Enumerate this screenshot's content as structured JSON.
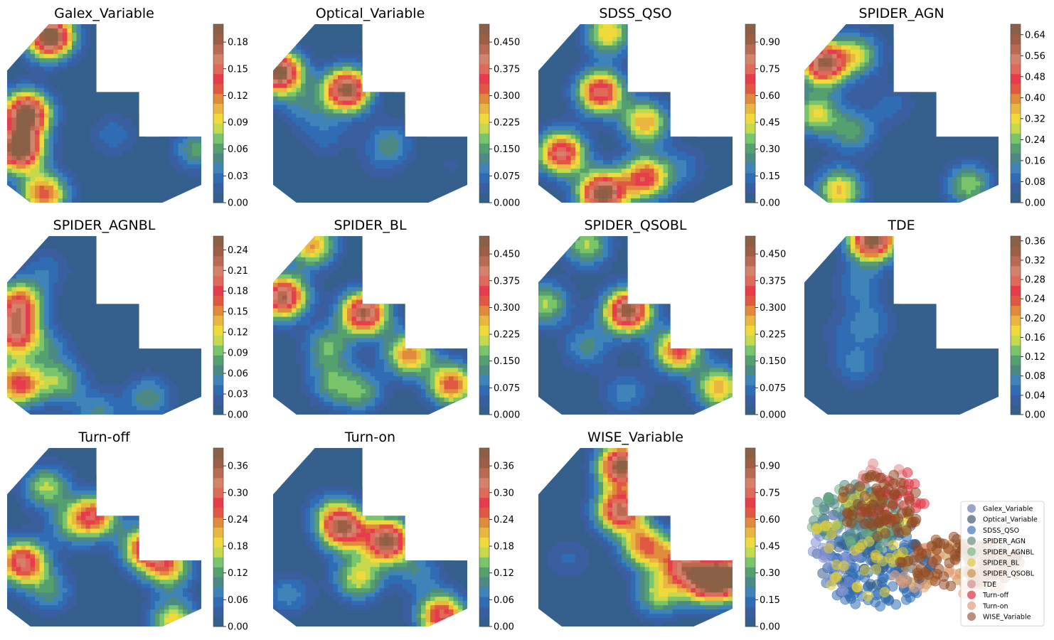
{
  "palette": [
    "#355f8d",
    "#3a5fa0",
    "#2f6cb3",
    "#3f84b8",
    "#4c8a83",
    "#55a06f",
    "#7ac56b",
    "#c6d84c",
    "#f0d93b",
    "#e9b640",
    "#e08a3c",
    "#e05842",
    "#e63c4b",
    "#e06a5a",
    "#d4826b",
    "#b86b52",
    "#9c5e45",
    "#8a6046"
  ],
  "chart_data": [
    {
      "type": "heatmap",
      "style": "filled-contour",
      "title": "Galex_Variable",
      "colorbar": {
        "ticks": [
          "0.00",
          "0.03",
          "0.06",
          "0.09",
          "0.12",
          "0.15",
          "0.18"
        ],
        "range": [
          0,
          0.2
        ]
      },
      "peaks": [
        {
          "at": [
            0.22,
            0.07
          ],
          "value": 0.21
        },
        {
          "at": [
            0.1,
            0.5
          ],
          "value": 0.2
        },
        {
          "at": [
            0.06,
            0.7
          ],
          "value": 0.21
        },
        {
          "at": [
            0.19,
            0.95
          ],
          "value": 0.13
        },
        {
          "at": [
            0.98,
            0.7
          ],
          "value": 0.06
        },
        {
          "at": [
            0.55,
            0.62
          ],
          "value": 0.03
        }
      ]
    },
    {
      "type": "heatmap",
      "style": "filled-contour",
      "title": "Optical_Variable",
      "colorbar": {
        "ticks": [
          "0.000",
          "0.075",
          "0.150",
          "0.225",
          "0.300",
          "0.375",
          "0.450"
        ],
        "range": [
          0,
          0.5
        ]
      },
      "peaks": [
        {
          "at": [
            0.03,
            0.27
          ],
          "value": 0.5
        },
        {
          "at": [
            0.38,
            0.37
          ],
          "value": 0.48
        },
        {
          "at": [
            0.16,
            0.46
          ],
          "value": 0.09
        },
        {
          "at": [
            0.6,
            0.67
          ],
          "value": 0.12
        },
        {
          "at": [
            0.27,
            0.62
          ],
          "value": 0.07
        },
        {
          "at": [
            0.54,
            0.79
          ],
          "value": 0.03
        },
        {
          "at": [
            0.92,
            0.79
          ],
          "value": 0.03
        }
      ]
    },
    {
      "type": "heatmap",
      "style": "filled-contour",
      "title": "SDSS_QSO",
      "colorbar": {
        "ticks": [
          "0.00",
          "0.15",
          "0.30",
          "0.45",
          "0.60",
          "0.75",
          "0.90"
        ],
        "range": [
          0,
          1.0
        ]
      },
      "peaks": [
        {
          "at": [
            0.32,
            0.38
          ],
          "value": 0.78
        },
        {
          "at": [
            0.12,
            0.72
          ],
          "value": 0.8
        },
        {
          "at": [
            0.33,
            0.95
          ],
          "value": 1.0
        },
        {
          "at": [
            0.55,
            0.55
          ],
          "value": 0.55
        },
        {
          "at": [
            0.55,
            0.86
          ],
          "value": 0.7
        },
        {
          "at": [
            0.36,
            0.05
          ],
          "value": 0.5
        },
        {
          "at": [
            0.75,
            0.8
          ],
          "value": 0.15
        }
      ]
    },
    {
      "type": "heatmap",
      "style": "filled-contour",
      "title": "SPIDER_AGN",
      "colorbar": {
        "ticks": [
          "0.00",
          "0.08",
          "0.16",
          "0.24",
          "0.32",
          "0.40",
          "0.48",
          "0.56",
          "0.64"
        ],
        "range": [
          0,
          0.68
        ]
      },
      "peaks": [
        {
          "at": [
            0.1,
            0.22
          ],
          "value": 0.62
        },
        {
          "at": [
            0.06,
            0.5
          ],
          "value": 0.3
        },
        {
          "at": [
            0.18,
            0.93
          ],
          "value": 0.35
        },
        {
          "at": [
            0.28,
            0.17
          ],
          "value": 0.25
        },
        {
          "at": [
            0.25,
            0.6
          ],
          "value": 0.2
        },
        {
          "at": [
            0.45,
            0.45
          ],
          "value": 0.09
        },
        {
          "at": [
            0.85,
            0.9
          ],
          "value": 0.26
        }
      ]
    },
    {
      "type": "heatmap",
      "style": "filled-contour",
      "title": "SPIDER_AGNBL",
      "colorbar": {
        "ticks": [
          "0.00",
          "0.03",
          "0.06",
          "0.09",
          "0.12",
          "0.15",
          "0.18",
          "0.21",
          "0.24"
        ],
        "range": [
          0,
          0.26
        ]
      },
      "peaks": [
        {
          "at": [
            0.06,
            0.38
          ],
          "value": 0.18
        },
        {
          "at": [
            0.04,
            0.55
          ],
          "value": 0.19
        },
        {
          "at": [
            0.06,
            0.83
          ],
          "value": 0.18
        },
        {
          "at": [
            0.28,
            0.82
          ],
          "value": 0.09
        },
        {
          "at": [
            0.21,
            0.63
          ],
          "value": 0.05
        },
        {
          "at": [
            0.73,
            0.9
          ],
          "value": 0.07
        },
        {
          "at": [
            0.47,
            0.99
          ],
          "value": 0.06
        },
        {
          "at": [
            0.2,
            0.19
          ],
          "value": 0.04
        }
      ]
    },
    {
      "type": "heatmap",
      "style": "filled-contour",
      "title": "SPIDER_BL",
      "colorbar": {
        "ticks": [
          "0.000",
          "0.075",
          "0.150",
          "0.225",
          "0.300",
          "0.375",
          "0.450"
        ],
        "range": [
          0,
          0.5
        ]
      },
      "peaks": [
        {
          "at": [
            0.05,
            0.34
          ],
          "value": 0.45
        },
        {
          "at": [
            0.47,
            0.43
          ],
          "value": 0.45
        },
        {
          "at": [
            0.7,
            0.66
          ],
          "value": 0.3
        },
        {
          "at": [
            0.92,
            0.83
          ],
          "value": 0.33
        },
        {
          "at": [
            0.2,
            0.05
          ],
          "value": 0.28
        },
        {
          "at": [
            0.28,
            0.62
          ],
          "value": 0.16
        },
        {
          "at": [
            0.45,
            0.87
          ],
          "value": 0.15
        },
        {
          "at": [
            0.3,
            0.82
          ],
          "value": 0.14
        }
      ]
    },
    {
      "type": "heatmap",
      "style": "filled-contour",
      "title": "SPIDER_QSOBL",
      "colorbar": {
        "ticks": [
          "0.000",
          "0.075",
          "0.150",
          "0.225",
          "0.300",
          "0.375",
          "0.450"
        ],
        "range": [
          0,
          0.5
        ]
      },
      "peaks": [
        {
          "at": [
            0.46,
            0.42
          ],
          "value": 0.48
        },
        {
          "at": [
            0.72,
            0.64
          ],
          "value": 0.34
        },
        {
          "at": [
            0.93,
            0.85
          ],
          "value": 0.27
        },
        {
          "at": [
            0.25,
            0.05
          ],
          "value": 0.2
        },
        {
          "at": [
            0.04,
            0.38
          ],
          "value": 0.2
        },
        {
          "at": [
            0.25,
            0.62
          ],
          "value": 0.12
        },
        {
          "at": [
            0.45,
            0.88
          ],
          "value": 0.1
        }
      ]
    },
    {
      "type": "heatmap",
      "style": "filled-contour",
      "title": "TDE",
      "colorbar": {
        "ticks": [
          "0.00",
          "0.04",
          "0.08",
          "0.12",
          "0.16",
          "0.20",
          "0.24",
          "0.28",
          "0.32",
          "0.36"
        ],
        "range": [
          0,
          0.37
        ]
      },
      "peaks": [
        {
          "at": [
            0.35,
            0.02
          ],
          "value": 0.37
        },
        {
          "at": [
            0.28,
            0.28
          ],
          "value": 0.07
        },
        {
          "at": [
            0.34,
            0.49
          ],
          "value": 0.07
        },
        {
          "at": [
            0.27,
            0.72
          ],
          "value": 0.07
        },
        {
          "at": [
            0.18,
            0.54
          ],
          "value": 0.03
        }
      ]
    },
    {
      "type": "heatmap",
      "style": "filled-contour",
      "title": "Turn-off",
      "colorbar": {
        "ticks": [
          "0.00",
          "0.06",
          "0.12",
          "0.18",
          "0.24",
          "0.30",
          "0.36"
        ],
        "range": [
          0,
          0.4
        ]
      },
      "peaks": [
        {
          "at": [
            0.08,
            0.64
          ],
          "value": 0.32
        },
        {
          "at": [
            0.45,
            0.38
          ],
          "value": 0.26
        },
        {
          "at": [
            0.72,
            0.56
          ],
          "value": 0.3
        },
        {
          "at": [
            0.83,
            0.67
          ],
          "value": 0.2
        },
        {
          "at": [
            0.2,
            0.22
          ],
          "value": 0.16
        },
        {
          "at": [
            0.22,
            0.8
          ],
          "value": 0.1
        },
        {
          "at": [
            0.86,
            0.97
          ],
          "value": 0.2
        },
        {
          "at": [
            0.33,
            0.43
          ],
          "value": 0.1
        }
      ]
    },
    {
      "type": "heatmap",
      "style": "filled-contour",
      "title": "Turn-on",
      "colorbar": {
        "ticks": [
          "0.00",
          "0.06",
          "0.12",
          "0.18",
          "0.24",
          "0.30",
          "0.36"
        ],
        "range": [
          0,
          0.4
        ]
      },
      "peaks": [
        {
          "at": [
            0.36,
            0.45
          ],
          "value": 0.34
        },
        {
          "at": [
            0.59,
            0.52
          ],
          "value": 0.38
        },
        {
          "at": [
            0.87,
            0.94
          ],
          "value": 0.3
        },
        {
          "at": [
            0.44,
            0.73
          ],
          "value": 0.18
        },
        {
          "at": [
            0.08,
            0.82
          ],
          "value": 0.08
        },
        {
          "at": [
            0.3,
            0.35
          ],
          "value": 0.08
        },
        {
          "at": [
            0.75,
            0.7
          ],
          "value": 0.08
        }
      ]
    },
    {
      "type": "heatmap",
      "style": "filled-contour",
      "title": "WISE_Variable",
      "colorbar": {
        "ticks": [
          "0.00",
          "0.15",
          "0.30",
          "0.45",
          "0.60",
          "0.75",
          "0.90"
        ],
        "range": [
          0,
          1.0
        ]
      },
      "peaks": [
        {
          "at": [
            0.43,
            0.1
          ],
          "value": 0.98
        },
        {
          "at": [
            0.42,
            0.35
          ],
          "value": 0.85
        },
        {
          "at": [
            0.55,
            0.55
          ],
          "value": 0.62
        },
        {
          "at": [
            0.74,
            0.65
          ],
          "value": 0.65
        },
        {
          "at": [
            0.86,
            0.75
          ],
          "value": 0.72
        },
        {
          "at": [
            0.98,
            0.72
          ],
          "value": 0.9
        },
        {
          "at": [
            0.62,
            0.82
          ],
          "value": 0.4
        },
        {
          "at": [
            0.15,
            0.62
          ],
          "value": 0.12
        }
      ]
    },
    {
      "type": "scatter",
      "title": "",
      "legend": {
        "position": "right",
        "entries": [
          {
            "label": "Galex_Variable",
            "color": "#8e99c9"
          },
          {
            "label": "Optical_Variable",
            "color": "#6b7f92"
          },
          {
            "label": "SDSS_QSO",
            "color": "#6e93c9"
          },
          {
            "label": "SPIDER_AGN",
            "color": "#87a8a0"
          },
          {
            "label": "SPIDER_AGNBL",
            "color": "#94c39c"
          },
          {
            "label": "SPIDER_BL",
            "color": "#e0d36a"
          },
          {
            "label": "SPIDER_QSOBL",
            "color": "#d4a469"
          },
          {
            "label": "TDE",
            "color": "#d9a3a3"
          },
          {
            "label": "Turn-off",
            "color": "#e25e6c"
          },
          {
            "label": "Turn-on",
            "color": "#e6b39a"
          },
          {
            "label": "WISE_Variable",
            "color": "#b0826f"
          }
        ]
      },
      "point_clusters": [
        {
          "series": "SDSS_QSO",
          "color": "#2f6cb3",
          "count": 160,
          "region": "body-lower"
        },
        {
          "series": "Optical_Variable",
          "color": "#355f8d",
          "count": 60,
          "region": "body"
        },
        {
          "series": "Galex_Variable",
          "color": "#7f8fcf",
          "count": 40,
          "region": "body-left"
        },
        {
          "series": "SPIDER_AGN",
          "color": "#4c8a83",
          "count": 60,
          "region": "body-upper"
        },
        {
          "series": "SPIDER_AGNBL",
          "color": "#6fb27e",
          "count": 30,
          "region": "body-upper"
        },
        {
          "series": "SPIDER_BL",
          "color": "#e3cf35",
          "count": 45,
          "region": "body"
        },
        {
          "series": "SPIDER_QSOBL",
          "color": "#c98a3e",
          "count": 45,
          "region": "tail"
        },
        {
          "series": "TDE",
          "color": "#e08a8a",
          "count": 10,
          "region": "top"
        },
        {
          "series": "Turn-off",
          "color": "#e0303f",
          "count": 30,
          "region": "upper-right"
        },
        {
          "series": "Turn-on",
          "color": "#e6a07a",
          "count": 50,
          "region": "tail"
        },
        {
          "series": "WISE_Variable",
          "color": "#8f4a22",
          "count": 150,
          "region": "upper-and-tail"
        }
      ]
    }
  ]
}
